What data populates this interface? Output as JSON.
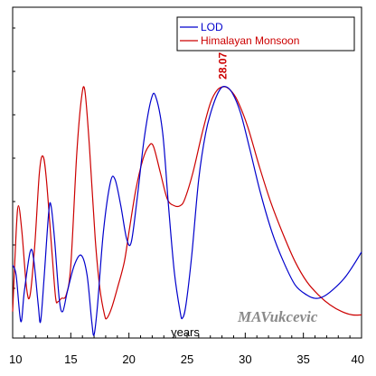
{
  "chart_data": {
    "type": "line",
    "xlabel": "years",
    "xlim": [
      10,
      40
    ],
    "ylim": [
      0,
      100
    ],
    "x_ticks": [
      10,
      15,
      20,
      25,
      30,
      35,
      40
    ],
    "legend_position": "top-right",
    "grid": false,
    "y_tick_labels_visible": false,
    "series": [
      {
        "name": "LOD",
        "color": "#0000cc",
        "points": [
          [
            10.0,
            22
          ],
          [
            10.3,
            19
          ],
          [
            10.7,
            5
          ],
          [
            11.0,
            14
          ],
          [
            11.5,
            26
          ],
          [
            11.8,
            24
          ],
          [
            12.2,
            10
          ],
          [
            12.4,
            5
          ],
          [
            12.7,
            18
          ],
          [
            13.1,
            38
          ],
          [
            13.3,
            40
          ],
          [
            13.6,
            30
          ],
          [
            14.0,
            12
          ],
          [
            14.3,
            8
          ],
          [
            14.7,
            14
          ],
          [
            15.3,
            22
          ],
          [
            15.9,
            25
          ],
          [
            16.4,
            19
          ],
          [
            16.8,
            5
          ],
          [
            17.0,
            1
          ],
          [
            17.3,
            10
          ],
          [
            17.8,
            32
          ],
          [
            18.4,
            47
          ],
          [
            18.8,
            48
          ],
          [
            19.3,
            40
          ],
          [
            19.8,
            30
          ],
          [
            20.2,
            29
          ],
          [
            20.7,
            42
          ],
          [
            21.3,
            60
          ],
          [
            21.9,
            72
          ],
          [
            22.3,
            73
          ],
          [
            22.9,
            62
          ],
          [
            23.4,
            40
          ],
          [
            23.9,
            20
          ],
          [
            24.4,
            8
          ],
          [
            24.6,
            6
          ],
          [
            24.9,
            10
          ],
          [
            25.4,
            25
          ],
          [
            26.0,
            48
          ],
          [
            26.6,
            62
          ],
          [
            27.2,
            70
          ],
          [
            27.8,
            75
          ],
          [
            28.3,
            76
          ],
          [
            28.9,
            74
          ],
          [
            29.6,
            68
          ],
          [
            30.4,
            57
          ],
          [
            31.3,
            44
          ],
          [
            32.3,
            32
          ],
          [
            33.3,
            23
          ],
          [
            34.3,
            16
          ],
          [
            35.3,
            13
          ],
          [
            36.0,
            12
          ],
          [
            36.7,
            12.5
          ],
          [
            37.5,
            14.5
          ],
          [
            38.5,
            18
          ],
          [
            39.3,
            22
          ],
          [
            40.0,
            26
          ]
        ]
      },
      {
        "name": "Himalayan Monsoon",
        "color": "#cc0000",
        "points": [
          [
            10.0,
            8
          ],
          [
            10.3,
            32
          ],
          [
            10.5,
            40
          ],
          [
            10.8,
            32
          ],
          [
            11.2,
            15
          ],
          [
            11.5,
            13
          ],
          [
            11.9,
            28
          ],
          [
            12.3,
            50
          ],
          [
            12.6,
            55
          ],
          [
            12.9,
            48
          ],
          [
            13.4,
            25
          ],
          [
            13.7,
            12
          ],
          [
            13.9,
            11
          ],
          [
            14.2,
            12
          ],
          [
            14.6,
            13
          ],
          [
            15.0,
            22
          ],
          [
            15.5,
            55
          ],
          [
            15.9,
            72
          ],
          [
            16.2,
            75
          ],
          [
            16.6,
            58
          ],
          [
            17.1,
            30
          ],
          [
            17.5,
            15
          ],
          [
            17.9,
            7
          ],
          [
            18.1,
            6
          ],
          [
            18.5,
            9
          ],
          [
            19.0,
            15
          ],
          [
            19.6,
            23
          ],
          [
            20.0,
            32
          ],
          [
            20.6,
            45
          ],
          [
            21.2,
            54
          ],
          [
            21.7,
            58
          ],
          [
            22.1,
            58
          ],
          [
            22.7,
            50
          ],
          [
            23.3,
            42
          ],
          [
            23.9,
            40
          ],
          [
            24.4,
            40
          ],
          [
            24.8,
            42
          ],
          [
            25.5,
            50
          ],
          [
            26.3,
            62
          ],
          [
            27.0,
            71
          ],
          [
            27.6,
            75
          ],
          [
            28.2,
            76
          ],
          [
            28.7,
            75
          ],
          [
            29.3,
            72
          ],
          [
            30.2,
            64
          ],
          [
            31.2,
            52
          ],
          [
            32.2,
            41
          ],
          [
            33.3,
            31
          ],
          [
            34.3,
            23
          ],
          [
            35.3,
            17
          ],
          [
            36.3,
            13
          ],
          [
            37.3,
            10
          ],
          [
            38.3,
            8
          ],
          [
            39.2,
            7
          ],
          [
            40.0,
            7
          ]
        ]
      }
    ],
    "annotations": [
      {
        "text": "28.07",
        "x": 28.07,
        "y": 76,
        "color": "#cc0000",
        "orientation": "vertical"
      }
    ],
    "signature": "MAVukcevic"
  }
}
